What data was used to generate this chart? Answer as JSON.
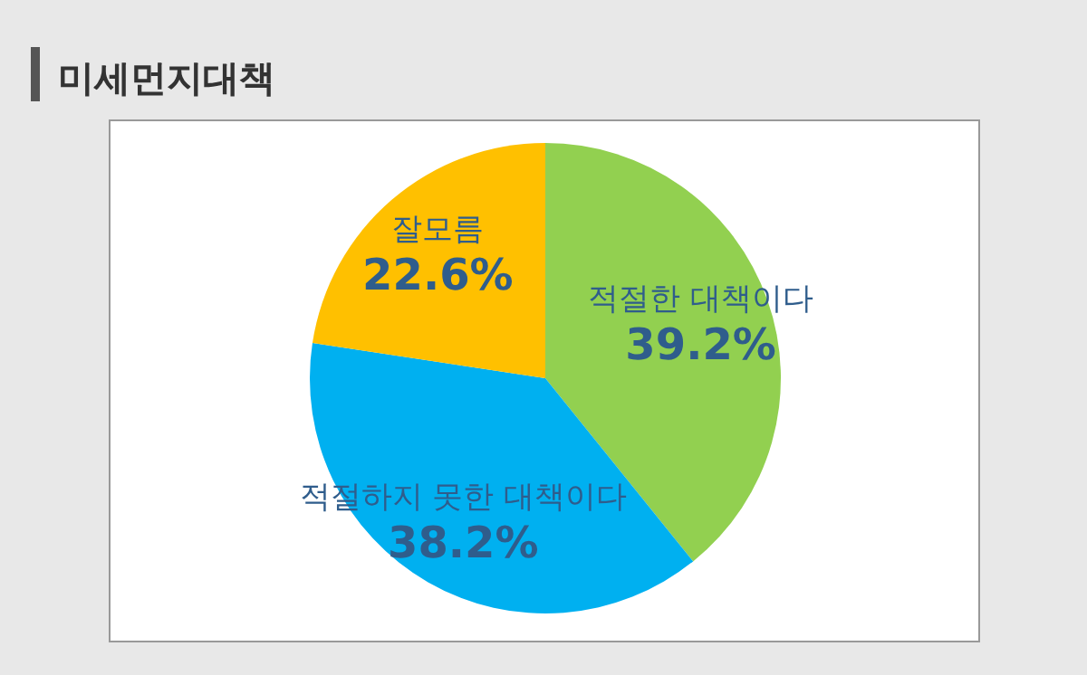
{
  "chart_data": {
    "type": "pie",
    "title": "미세먼지대책",
    "categories": [
      "적절한 대책이다",
      "적절하지 못한 대책이다",
      "잘모름"
    ],
    "values": [
      39.2,
      38.2,
      22.6
    ],
    "value_labels": [
      "39.2%",
      "38.2%",
      "22.6%"
    ],
    "colors": [
      "#92d050",
      "#00b0f0",
      "#ffc000"
    ]
  }
}
